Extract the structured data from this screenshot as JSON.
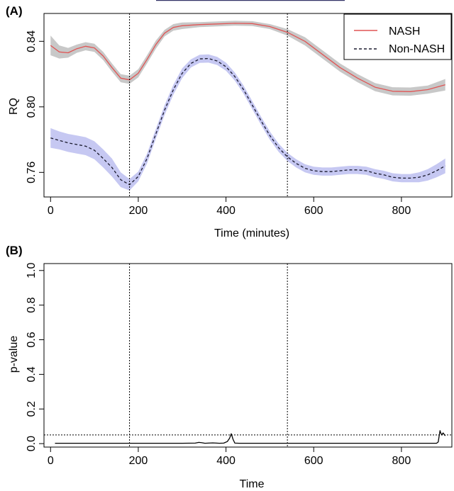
{
  "chart_data": [
    {
      "panel": "(A)",
      "type": "line",
      "xlabel": "Time (minutes)",
      "ylabel": "RQ",
      "xlim": [
        -15,
        915
      ],
      "ylim": [
        0.745,
        0.857
      ],
      "xticks": [
        0,
        200,
        400,
        600,
        800
      ],
      "yticks": [
        0.76,
        0.8,
        0.84
      ],
      "ytick_labels": [
        "0.76",
        "0.80",
        "0.84"
      ],
      "vlines": [
        180,
        540
      ],
      "legend": {
        "placement": "top-right",
        "entries": [
          "NASH",
          "Non-NASH"
        ]
      },
      "series": [
        {
          "name": "NASH",
          "color": "#e05555",
          "band_color": "#c8c8c8",
          "line_style": "solid",
          "x": [
            0,
            20,
            40,
            60,
            80,
            100,
            120,
            140,
            160,
            180,
            200,
            220,
            240,
            260,
            280,
            300,
            340,
            380,
            420,
            460,
            500,
            540,
            580,
            620,
            660,
            700,
            740,
            780,
            820,
            860,
            900
          ],
          "y": [
            0.8375,
            0.8335,
            0.833,
            0.8355,
            0.837,
            0.836,
            0.831,
            0.824,
            0.8175,
            0.8165,
            0.8205,
            0.829,
            0.838,
            0.845,
            0.8485,
            0.8495,
            0.8502,
            0.8506,
            0.851,
            0.8508,
            0.849,
            0.8455,
            0.84,
            0.832,
            0.824,
            0.8175,
            0.812,
            0.8095,
            0.8093,
            0.8105,
            0.8135
          ],
          "ci_halfwidth": [
            0.006,
            0.004,
            0.003,
            0.0025,
            0.0025,
            0.0025,
            0.0025,
            0.0025,
            0.0025,
            0.0025,
            0.0025,
            0.0025,
            0.0025,
            0.002,
            0.002,
            0.002,
            0.0015,
            0.0015,
            0.0015,
            0.0015,
            0.0015,
            0.002,
            0.0025,
            0.0025,
            0.0025,
            0.0025,
            0.0025,
            0.0025,
            0.0025,
            0.0025,
            0.0035
          ]
        },
        {
          "name": "Non-NASH",
          "color": "#1a1a2e",
          "band_color": "#c6c8f2",
          "line_style": "dashed",
          "x": [
            0,
            20,
            40,
            60,
            80,
            100,
            120,
            140,
            160,
            180,
            200,
            220,
            240,
            260,
            280,
            300,
            320,
            340,
            360,
            380,
            400,
            420,
            440,
            460,
            480,
            500,
            520,
            540,
            560,
            580,
            600,
            620,
            640,
            660,
            680,
            700,
            720,
            740,
            760,
            780,
            800,
            820,
            840,
            860,
            880,
            900
          ],
          "y": [
            0.781,
            0.7795,
            0.778,
            0.777,
            0.776,
            0.7735,
            0.7685,
            0.763,
            0.7555,
            0.7525,
            0.7575,
            0.7685,
            0.7835,
            0.798,
            0.8105,
            0.8205,
            0.8265,
            0.8293,
            0.8295,
            0.828,
            0.8245,
            0.8185,
            0.8105,
            0.801,
            0.7915,
            0.7825,
            0.775,
            0.7695,
            0.7655,
            0.7625,
            0.761,
            0.7605,
            0.7605,
            0.761,
            0.7615,
            0.7615,
            0.761,
            0.7595,
            0.7585,
            0.757,
            0.7565,
            0.7565,
            0.757,
            0.7585,
            0.761,
            0.764
          ],
          "ci_halfwidth": [
            0.006,
            0.0055,
            0.0055,
            0.0055,
            0.0055,
            0.0055,
            0.0055,
            0.0055,
            0.0045,
            0.0035,
            0.003,
            0.003,
            0.003,
            0.003,
            0.003,
            0.003,
            0.0025,
            0.0025,
            0.0025,
            0.0025,
            0.0025,
            0.0025,
            0.0025,
            0.0025,
            0.0025,
            0.0025,
            0.0025,
            0.0025,
            0.0025,
            0.0025,
            0.0025,
            0.0025,
            0.0025,
            0.0025,
            0.0025,
            0.0025,
            0.0025,
            0.0025,
            0.0025,
            0.0025,
            0.0025,
            0.0025,
            0.003,
            0.0035,
            0.004,
            0.0045
          ]
        }
      ]
    },
    {
      "panel": "(B)",
      "type": "line",
      "xlabel": "Time",
      "ylabel": "p-value",
      "xlim": [
        -15,
        915
      ],
      "ylim": [
        -0.02,
        1.04
      ],
      "xticks": [
        0,
        200,
        400,
        600,
        800
      ],
      "yticks": [
        0.0,
        0.2,
        0.4,
        0.6,
        0.8,
        1.0
      ],
      "ytick_labels": [
        "0.0",
        "0.2",
        "0.4",
        "0.6",
        "0.8",
        "1.0"
      ],
      "vlines": [
        180,
        540
      ],
      "hline": 0.05,
      "series": [
        {
          "color": "#000000",
          "line_style": "solid",
          "x": [
            10,
            100,
            200,
            300,
            330,
            338,
            345,
            352,
            360,
            370,
            378,
            385,
            395,
            403,
            408,
            412,
            416,
            420,
            430,
            500,
            600,
            700,
            800,
            880,
            884,
            886,
            888,
            890,
            892,
            895,
            900
          ],
          "y": [
            0.002,
            0.002,
            0.002,
            0.002,
            0.003,
            0.007,
            0.005,
            0.002,
            0.003,
            0.004,
            0.003,
            0.002,
            0.003,
            0.012,
            0.03,
            0.057,
            0.025,
            0.003,
            0.002,
            0.002,
            0.002,
            0.002,
            0.002,
            0.002,
            0.01,
            0.045,
            0.075,
            0.06,
            0.05,
            0.062,
            0.045
          ]
        }
      ]
    }
  ]
}
